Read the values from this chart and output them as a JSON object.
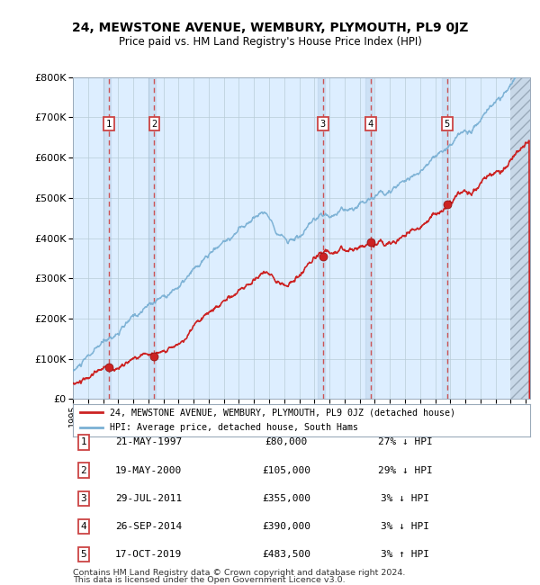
{
  "title": "24, MEWSTONE AVENUE, WEMBURY, PLYMOUTH, PL9 0JZ",
  "subtitle": "Price paid vs. HM Land Registry's House Price Index (HPI)",
  "hpi_label": "HPI: Average price, detached house, South Hams",
  "property_label": "24, MEWSTONE AVENUE, WEMBURY, PLYMOUTH, PL9 0JZ (detached house)",
  "footer1": "Contains HM Land Registry data © Crown copyright and database right 2024.",
  "footer2": "This data is licensed under the Open Government Licence v3.0.",
  "sales": [
    {
      "num": 1,
      "date_str": "21-MAY-1997",
      "year": 1997.38,
      "price": 80000,
      "price_str": "£80,000",
      "pct_str": "27% ↓ HPI"
    },
    {
      "num": 2,
      "date_str": "19-MAY-2000",
      "year": 2000.38,
      "price": 105000,
      "price_str": "£105,000",
      "pct_str": "29% ↓ HPI"
    },
    {
      "num": 3,
      "date_str": "29-JUL-2011",
      "year": 2011.57,
      "price": 355000,
      "price_str": "£355,000",
      "pct_str": "3% ↓ HPI"
    },
    {
      "num": 4,
      "date_str": "26-SEP-2014",
      "year": 2014.73,
      "price": 390000,
      "price_str": "£390,000",
      "pct_str": "3% ↓ HPI"
    },
    {
      "num": 5,
      "date_str": "17-OCT-2019",
      "year": 2019.79,
      "price": 483500,
      "price_str": "£483,500",
      "pct_str": "3% ↑ HPI"
    }
  ],
  "hpi_color": "#7ab0d4",
  "property_color": "#cc2222",
  "dashed_color": "#cc4444",
  "bg_chart": "#ddeeff",
  "ylim": [
    0,
    800000
  ],
  "xlim_start": 1995.0,
  "xlim_end": 2025.3,
  "yticks": [
    0,
    100000,
    200000,
    300000,
    400000,
    500000,
    600000,
    700000,
    800000
  ]
}
